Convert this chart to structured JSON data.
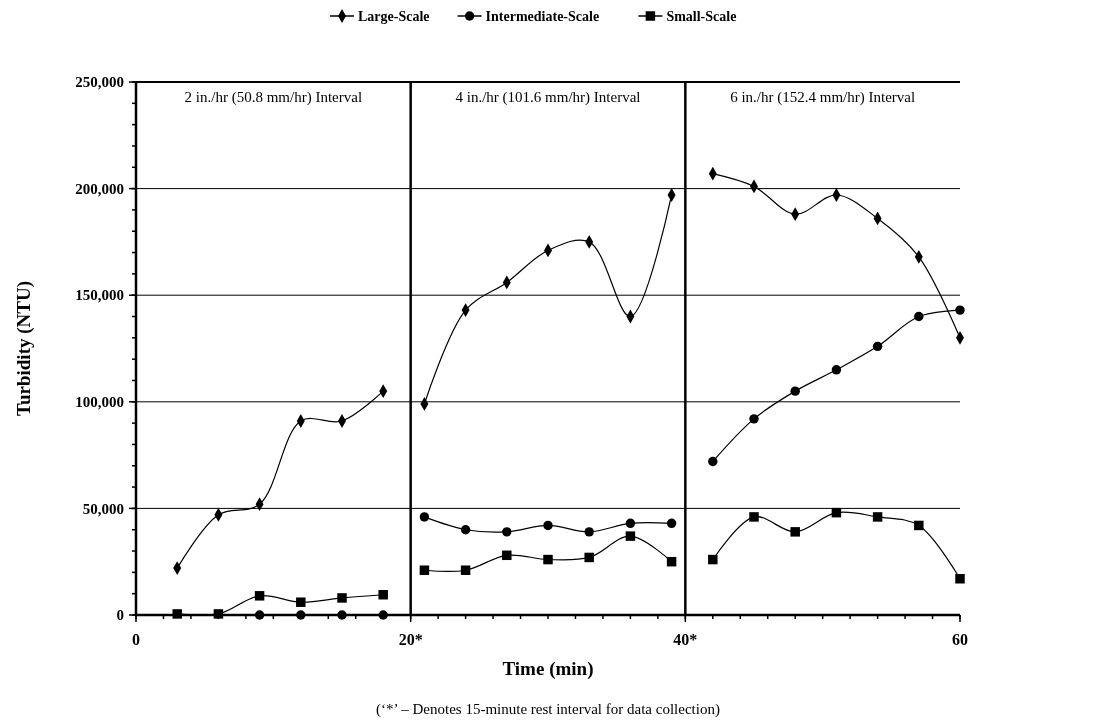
{
  "chart_data": {
    "type": "line",
    "xlabel": "Time (min)",
    "ylabel": "Turbidity (NTU)",
    "x": [
      3,
      6,
      9,
      12,
      15,
      18,
      20,
      21,
      24,
      27,
      30,
      33,
      36,
      39,
      40,
      42,
      45,
      48,
      51,
      54,
      57,
      60
    ],
    "series": [
      {
        "name": "Large-Scale",
        "color": "#000000",
        "marker": "diamond",
        "values": [
          22000,
          47000,
          52000,
          91000,
          91000,
          105000,
          null,
          99000,
          143000,
          156000,
          171000,
          175000,
          140000,
          197000,
          null,
          207000,
          201000,
          188000,
          197000,
          186000,
          168000,
          130000
        ]
      },
      {
        "name": "Intermediate-Scale",
        "color": "#000000",
        "marker": "circle",
        "values": [
          null,
          null,
          0,
          0,
          0,
          0,
          null,
          46000,
          40000,
          39000,
          42000,
          39000,
          43000,
          43000,
          null,
          72000,
          92000,
          105000,
          115000,
          126000,
          140000,
          143000
        ]
      },
      {
        "name": "Small-Scale",
        "color": "#000000",
        "marker": "square",
        "values": [
          500,
          500,
          9000,
          6000,
          8000,
          9500,
          null,
          21000,
          21000,
          28000,
          26000,
          27000,
          37000,
          25000,
          null,
          26000,
          46000,
          39000,
          48000,
          46000,
          42000,
          17000
        ]
      }
    ],
    "xlim": [
      0,
      60
    ],
    "xticks": [
      0,
      {
        "value": 20,
        "label": "20*"
      },
      {
        "value": 40,
        "label": "40*"
      },
      60
    ],
    "ylim": [
      0,
      250000
    ],
    "yticks": [
      {
        "value": 0,
        "label": "0"
      },
      {
        "value": 50000,
        "label": "50,000"
      },
      {
        "value": 100000,
        "label": "100,000"
      },
      {
        "value": 150000,
        "label": "150,000"
      },
      {
        "value": 200000,
        "label": "200,000"
      },
      {
        "value": 250000,
        "label": "250,000"
      }
    ],
    "grid": "y",
    "legend": "top",
    "line_style": "solid",
    "ref_lines": [
      {
        "axis": "x",
        "value": 20
      },
      {
        "axis": "x",
        "value": 40
      }
    ],
    "annotations": [
      "2 in./hr (50.8 mm/hr) Interval",
      "4 in./hr (101.6 mm/hr) Interval",
      "6 in./hr (152.4 mm/hr) Interval",
      "(‘*’ – Denotes 15-minute rest interval for data collection)"
    ]
  }
}
